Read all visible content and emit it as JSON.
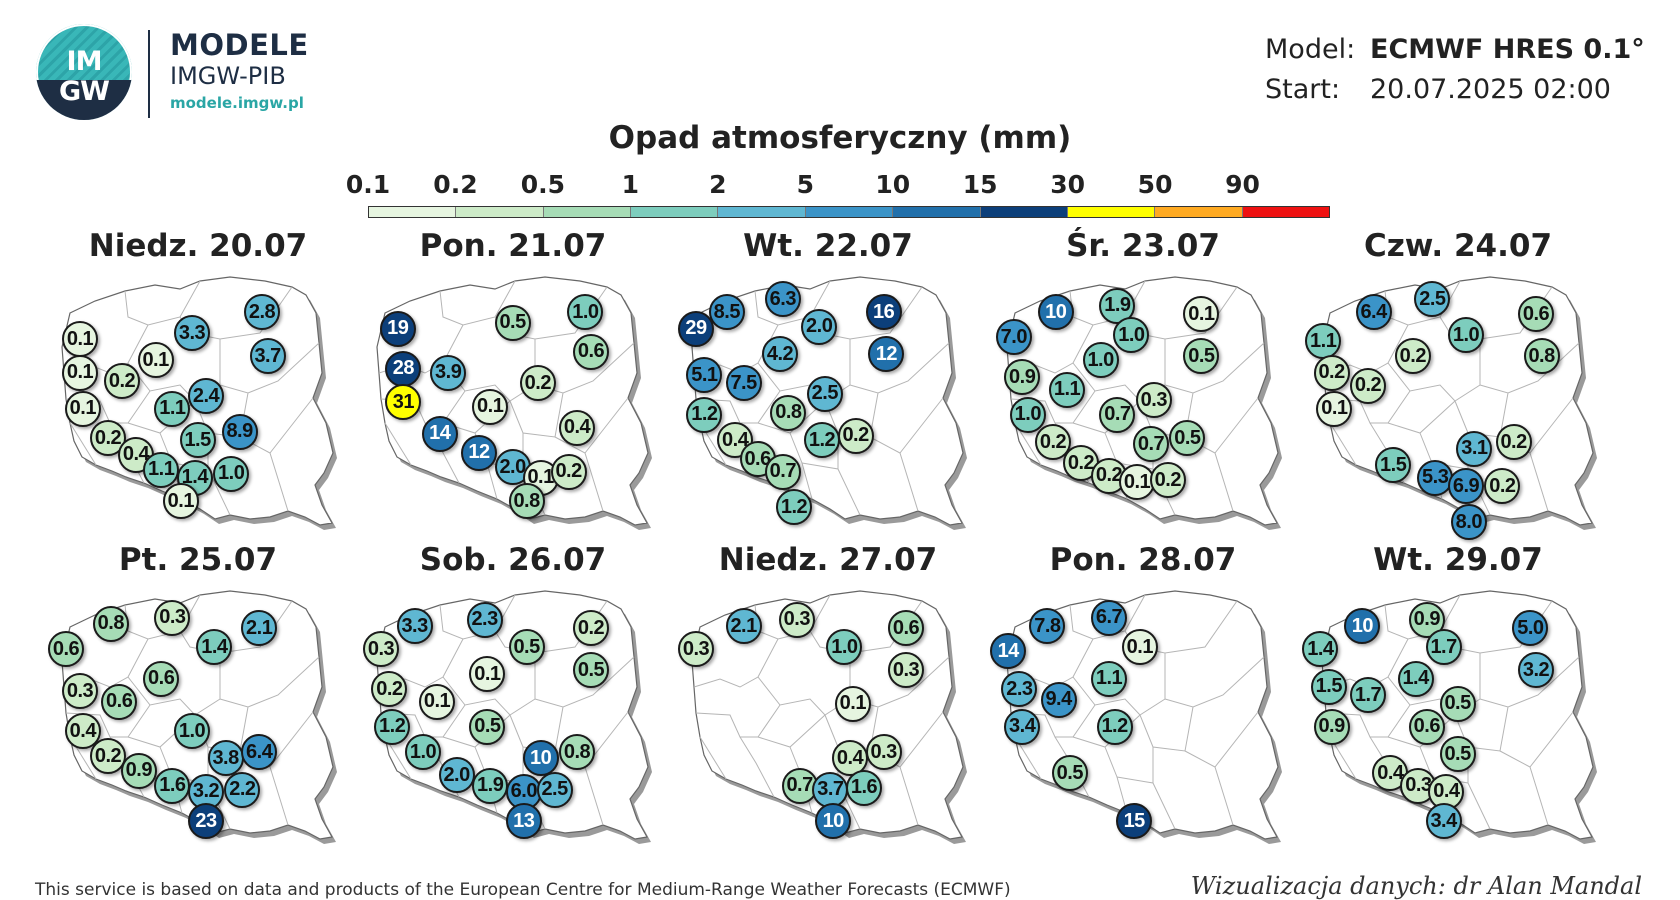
{
  "header": {
    "logo_top": "IM",
    "logo_bottom": "GW",
    "title": "MODELE",
    "subtitle": "IMGW-PIB",
    "url": "modele.imgw.pl"
  },
  "meta": {
    "model_label": "Model:",
    "model_value": "ECMWF HRES 0.1°",
    "start_label": "Start:",
    "start_value": "20.07.2025 02:00"
  },
  "legend": {
    "title": "Opad atmosferyczny (mm)",
    "thresholds": [
      "0.1",
      "0.2",
      "0.5",
      "1",
      "2",
      "5",
      "10",
      "15",
      "30",
      "50",
      "90"
    ],
    "colors": [
      "#e6f5e0",
      "#cdebc8",
      "#a6dcb6",
      "#7dcdbd",
      "#5fb7d2",
      "#3b94c8",
      "#2170ab",
      "#0c3f7a",
      "#ffff00",
      "#ffaa22",
      "#ee1111"
    ]
  },
  "panels": [
    {
      "title": "Niedz. 20.07",
      "points": [
        {
          "v": "0.1",
          "x": 0.1,
          "y": 0.23
        },
        {
          "v": "3.3",
          "x": 0.5,
          "y": 0.2
        },
        {
          "v": "2.8",
          "x": 0.75,
          "y": 0.1
        },
        {
          "v": "0.1",
          "x": 0.1,
          "y": 0.39
        },
        {
          "v": "0.1",
          "x": 0.37,
          "y": 0.33
        },
        {
          "v": "3.7",
          "x": 0.77,
          "y": 0.31
        },
        {
          "v": "0.2",
          "x": 0.25,
          "y": 0.43
        },
        {
          "v": "2.4",
          "x": 0.55,
          "y": 0.5
        },
        {
          "v": "0.1",
          "x": 0.11,
          "y": 0.56
        },
        {
          "v": "1.1",
          "x": 0.43,
          "y": 0.56
        },
        {
          "v": "0.2",
          "x": 0.2,
          "y": 0.7
        },
        {
          "v": "1.5",
          "x": 0.52,
          "y": 0.71
        },
        {
          "v": "8.9",
          "x": 0.67,
          "y": 0.67
        },
        {
          "v": "0.4",
          "x": 0.3,
          "y": 0.78
        },
        {
          "v": "1.1",
          "x": 0.39,
          "y": 0.85
        },
        {
          "v": "1.4",
          "x": 0.51,
          "y": 0.89
        },
        {
          "v": "1.0",
          "x": 0.64,
          "y": 0.87
        },
        {
          "v": "0.1",
          "x": 0.46,
          "y": 1.0
        }
      ]
    },
    {
      "title": "Pon. 21.07",
      "points": [
        {
          "v": "19",
          "x": 0.11,
          "y": 0.18
        },
        {
          "v": "0.5",
          "x": 0.52,
          "y": 0.15
        },
        {
          "v": "1.0",
          "x": 0.78,
          "y": 0.1
        },
        {
          "v": "28",
          "x": 0.13,
          "y": 0.37
        },
        {
          "v": "3.9",
          "x": 0.29,
          "y": 0.39
        },
        {
          "v": "0.6",
          "x": 0.8,
          "y": 0.29
        },
        {
          "v": "31",
          "x": 0.13,
          "y": 0.53
        },
        {
          "v": "0.1",
          "x": 0.44,
          "y": 0.55
        },
        {
          "v": "0.2",
          "x": 0.61,
          "y": 0.44
        },
        {
          "v": "14",
          "x": 0.26,
          "y": 0.68
        },
        {
          "v": "0.4",
          "x": 0.75,
          "y": 0.65
        },
        {
          "v": "12",
          "x": 0.4,
          "y": 0.77
        },
        {
          "v": "2.0",
          "x": 0.52,
          "y": 0.84
        },
        {
          "v": "0.1",
          "x": 0.62,
          "y": 0.89
        },
        {
          "v": "0.2",
          "x": 0.72,
          "y": 0.86
        },
        {
          "v": "0.8",
          "x": 0.57,
          "y": 1.0
        }
      ]
    },
    {
      "title": "Wt. 22.07",
      "points": [
        {
          "v": "8.5",
          "x": 0.16,
          "y": 0.1
        },
        {
          "v": "6.3",
          "x": 0.36,
          "y": 0.04
        },
        {
          "v": "16",
          "x": 0.72,
          "y": 0.1
        },
        {
          "v": "29",
          "x": 0.05,
          "y": 0.18
        },
        {
          "v": "2.0",
          "x": 0.49,
          "y": 0.17
        },
        {
          "v": "4.2",
          "x": 0.35,
          "y": 0.3
        },
        {
          "v": "12",
          "x": 0.73,
          "y": 0.3
        },
        {
          "v": "5.1",
          "x": 0.08,
          "y": 0.4
        },
        {
          "v": "7.5",
          "x": 0.22,
          "y": 0.44
        },
        {
          "v": "2.5",
          "x": 0.51,
          "y": 0.49
        },
        {
          "v": "1.2",
          "x": 0.08,
          "y": 0.59
        },
        {
          "v": "0.8",
          "x": 0.38,
          "y": 0.58
        },
        {
          "v": "0.4",
          "x": 0.19,
          "y": 0.71
        },
        {
          "v": "1.2",
          "x": 0.5,
          "y": 0.71
        },
        {
          "v": "0.2",
          "x": 0.62,
          "y": 0.69
        },
        {
          "v": "0.6",
          "x": 0.27,
          "y": 0.8
        },
        {
          "v": "0.7",
          "x": 0.36,
          "y": 0.86
        },
        {
          "v": "1.2",
          "x": 0.4,
          "y": 1.03
        }
      ]
    },
    {
      "title": "Śr. 23.07",
      "points": [
        {
          "v": "10",
          "x": 0.21,
          "y": 0.1
        },
        {
          "v": "1.9",
          "x": 0.43,
          "y": 0.07
        },
        {
          "v": "0.1",
          "x": 0.73,
          "y": 0.11
        },
        {
          "v": "7.0",
          "x": 0.06,
          "y": 0.22
        },
        {
          "v": "1.0",
          "x": 0.48,
          "y": 0.21
        },
        {
          "v": "0.5",
          "x": 0.73,
          "y": 0.31
        },
        {
          "v": "0.9",
          "x": 0.09,
          "y": 0.41
        },
        {
          "v": "1.0",
          "x": 0.37,
          "y": 0.33
        },
        {
          "v": "1.1",
          "x": 0.25,
          "y": 0.47
        },
        {
          "v": "0.3",
          "x": 0.56,
          "y": 0.52
        },
        {
          "v": "1.0",
          "x": 0.11,
          "y": 0.59
        },
        {
          "v": "0.7",
          "x": 0.43,
          "y": 0.59
        },
        {
          "v": "0.2",
          "x": 0.2,
          "y": 0.72
        },
        {
          "v": "0.7",
          "x": 0.55,
          "y": 0.73
        },
        {
          "v": "0.5",
          "x": 0.68,
          "y": 0.7
        },
        {
          "v": "0.2",
          "x": 0.3,
          "y": 0.82
        },
        {
          "v": "0.2",
          "x": 0.4,
          "y": 0.88
        },
        {
          "v": "0.1",
          "x": 0.5,
          "y": 0.91
        },
        {
          "v": "0.2",
          "x": 0.61,
          "y": 0.9
        }
      ]
    },
    {
      "title": "Czw. 24.07",
      "points": [
        {
          "v": "6.4",
          "x": 0.22,
          "y": 0.1
        },
        {
          "v": "2.5",
          "x": 0.43,
          "y": 0.04
        },
        {
          "v": "0.6",
          "x": 0.8,
          "y": 0.11
        },
        {
          "v": "1.1",
          "x": 0.04,
          "y": 0.24
        },
        {
          "v": "1.0",
          "x": 0.55,
          "y": 0.21
        },
        {
          "v": "0.8",
          "x": 0.82,
          "y": 0.31
        },
        {
          "v": "0.2",
          "x": 0.07,
          "y": 0.39
        },
        {
          "v": "0.2",
          "x": 0.36,
          "y": 0.31
        },
        {
          "v": "0.2",
          "x": 0.2,
          "y": 0.45
        },
        {
          "v": "0.1",
          "x": 0.08,
          "y": 0.56
        },
        {
          "v": "3.1",
          "x": 0.58,
          "y": 0.75
        },
        {
          "v": "0.2",
          "x": 0.72,
          "y": 0.72
        },
        {
          "v": "1.5",
          "x": 0.29,
          "y": 0.83
        },
        {
          "v": "5.3",
          "x": 0.44,
          "y": 0.89
        },
        {
          "v": "6.9",
          "x": 0.55,
          "y": 0.93
        },
        {
          "v": "0.2",
          "x": 0.68,
          "y": 0.93
        },
        {
          "v": "8.0",
          "x": 0.56,
          "y": 1.1
        }
      ]
    },
    {
      "title": "Pt. 25.07",
      "points": [
        {
          "v": "0.8",
          "x": 0.21,
          "y": 0.09
        },
        {
          "v": "0.3",
          "x": 0.43,
          "y": 0.06
        },
        {
          "v": "2.1",
          "x": 0.74,
          "y": 0.11
        },
        {
          "v": "0.6",
          "x": 0.05,
          "y": 0.21
        },
        {
          "v": "1.4",
          "x": 0.58,
          "y": 0.2
        },
        {
          "v": "0.6",
          "x": 0.39,
          "y": 0.35
        },
        {
          "v": "0.3",
          "x": 0.1,
          "y": 0.41
        },
        {
          "v": "0.6",
          "x": 0.24,
          "y": 0.46
        },
        {
          "v": "0.4",
          "x": 0.11,
          "y": 0.6
        },
        {
          "v": "1.0",
          "x": 0.5,
          "y": 0.6
        },
        {
          "v": "3.8",
          "x": 0.62,
          "y": 0.73
        },
        {
          "v": "6.4",
          "x": 0.74,
          "y": 0.7
        },
        {
          "v": "0.2",
          "x": 0.2,
          "y": 0.72
        },
        {
          "v": "0.9",
          "x": 0.31,
          "y": 0.79
        },
        {
          "v": "1.6",
          "x": 0.43,
          "y": 0.86
        },
        {
          "v": "3.2",
          "x": 0.55,
          "y": 0.89
        },
        {
          "v": "2.2",
          "x": 0.68,
          "y": 0.88
        },
        {
          "v": "23",
          "x": 0.55,
          "y": 1.03
        }
      ]
    },
    {
      "title": "Sob. 26.07",
      "points": [
        {
          "v": "3.3",
          "x": 0.17,
          "y": 0.1
        },
        {
          "v": "2.3",
          "x": 0.42,
          "y": 0.07
        },
        {
          "v": "0.2",
          "x": 0.8,
          "y": 0.11
        },
        {
          "v": "0.3",
          "x": 0.05,
          "y": 0.21
        },
        {
          "v": "0.5",
          "x": 0.57,
          "y": 0.2
        },
        {
          "v": "0.5",
          "x": 0.8,
          "y": 0.31
        },
        {
          "v": "0.2",
          "x": 0.08,
          "y": 0.4
        },
        {
          "v": "0.1",
          "x": 0.43,
          "y": 0.33
        },
        {
          "v": "0.1",
          "x": 0.25,
          "y": 0.46
        },
        {
          "v": "1.2",
          "x": 0.09,
          "y": 0.58
        },
        {
          "v": "0.5",
          "x": 0.43,
          "y": 0.58
        },
        {
          "v": "10",
          "x": 0.62,
          "y": 0.73
        },
        {
          "v": "0.8",
          "x": 0.75,
          "y": 0.7
        },
        {
          "v": "1.0",
          "x": 0.2,
          "y": 0.7
        },
        {
          "v": "2.0",
          "x": 0.32,
          "y": 0.81
        },
        {
          "v": "1.9",
          "x": 0.44,
          "y": 0.86
        },
        {
          "v": "6.0",
          "x": 0.56,
          "y": 0.89
        },
        {
          "v": "2.5",
          "x": 0.67,
          "y": 0.88
        },
        {
          "v": "13",
          "x": 0.56,
          "y": 1.03
        }
      ]
    },
    {
      "title": "Niedz. 27.07",
      "points": [
        {
          "v": "2.1",
          "x": 0.22,
          "y": 0.1
        },
        {
          "v": "0.3",
          "x": 0.41,
          "y": 0.07
        },
        {
          "v": "0.6",
          "x": 0.8,
          "y": 0.11
        },
        {
          "v": "0.3",
          "x": 0.05,
          "y": 0.21
        },
        {
          "v": "1.0",
          "x": 0.58,
          "y": 0.2
        },
        {
          "v": "0.3",
          "x": 0.8,
          "y": 0.31
        },
        {
          "v": "0.1",
          "x": 0.61,
          "y": 0.47
        },
        {
          "v": "0.4",
          "x": 0.6,
          "y": 0.73
        },
        {
          "v": "0.3",
          "x": 0.72,
          "y": 0.7
        },
        {
          "v": "0.7",
          "x": 0.42,
          "y": 0.86
        },
        {
          "v": "3.7",
          "x": 0.53,
          "y": 0.88
        },
        {
          "v": "1.6",
          "x": 0.65,
          "y": 0.87
        },
        {
          "v": "10",
          "x": 0.54,
          "y": 1.03
        }
      ]
    },
    {
      "title": "Pon. 28.07",
      "points": [
        {
          "v": "7.8",
          "x": 0.18,
          "y": 0.1
        },
        {
          "v": "6.7",
          "x": 0.4,
          "y": 0.06
        },
        {
          "v": "14",
          "x": 0.04,
          "y": 0.22
        },
        {
          "v": "0.1",
          "x": 0.51,
          "y": 0.2
        },
        {
          "v": "1.1",
          "x": 0.4,
          "y": 0.35
        },
        {
          "v": "2.3",
          "x": 0.08,
          "y": 0.4
        },
        {
          "v": "9.4",
          "x": 0.22,
          "y": 0.45
        },
        {
          "v": "3.4",
          "x": 0.09,
          "y": 0.58
        },
        {
          "v": "1.2",
          "x": 0.42,
          "y": 0.58
        },
        {
          "v": "0.5",
          "x": 0.26,
          "y": 0.8
        },
        {
          "v": "15",
          "x": 0.49,
          "y": 1.03
        }
      ]
    },
    {
      "title": "Wt. 29.07",
      "points": [
        {
          "v": "10",
          "x": 0.18,
          "y": 0.1
        },
        {
          "v": "0.9",
          "x": 0.41,
          "y": 0.07
        },
        {
          "v": "5.0",
          "x": 0.78,
          "y": 0.11
        },
        {
          "v": "1.4",
          "x": 0.03,
          "y": 0.21
        },
        {
          "v": "1.7",
          "x": 0.47,
          "y": 0.2
        },
        {
          "v": "3.2",
          "x": 0.8,
          "y": 0.31
        },
        {
          "v": "1.5",
          "x": 0.06,
          "y": 0.39
        },
        {
          "v": "1.7",
          "x": 0.2,
          "y": 0.43
        },
        {
          "v": "1.4",
          "x": 0.37,
          "y": 0.35
        },
        {
          "v": "0.5",
          "x": 0.52,
          "y": 0.47
        },
        {
          "v": "0.9",
          "x": 0.07,
          "y": 0.58
        },
        {
          "v": "0.6",
          "x": 0.41,
          "y": 0.58
        },
        {
          "v": "0.5",
          "x": 0.52,
          "y": 0.71
        },
        {
          "v": "0.4",
          "x": 0.28,
          "y": 0.8
        },
        {
          "v": "0.3",
          "x": 0.38,
          "y": 0.86
        },
        {
          "v": "0.4",
          "x": 0.48,
          "y": 0.89
        },
        {
          "v": "3.4",
          "x": 0.47,
          "y": 1.03
        }
      ]
    }
  ],
  "footer": {
    "left": "This service is based on data and products of the European Centre for Medium-Range Weather Forecasts (ECMWF)",
    "right": "Wizualizacja danych: dr Alan Mandal"
  }
}
